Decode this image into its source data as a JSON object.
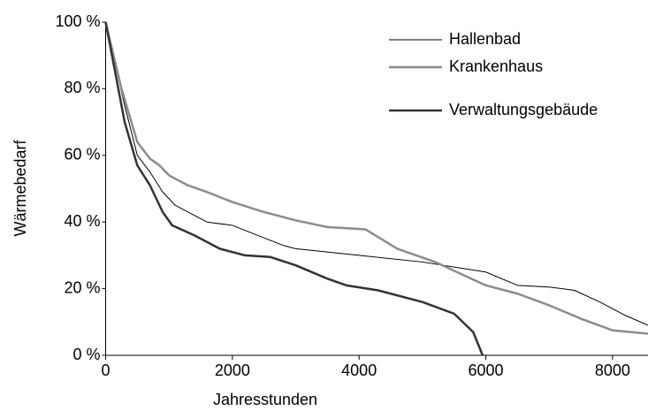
{
  "chart_data": {
    "type": "line",
    "xlabel": "Jahresstunden",
    "ylabel": "Wärmebedarf",
    "xlim": [
      0,
      8560
    ],
    "ylim": [
      0,
      100
    ],
    "xticks": [
      0,
      2000,
      4000,
      6000,
      8000
    ],
    "yticks": [
      {
        "value": 0,
        "label": "0 %"
      },
      {
        "value": 20,
        "label": "20 %"
      },
      {
        "value": 40,
        "label": "40 %"
      },
      {
        "value": 60,
        "label": "60 %"
      },
      {
        "value": 80,
        "label": "80 %"
      },
      {
        "value": 100,
        "label": "100 %"
      }
    ],
    "series": [
      {
        "name": "Hallenbad",
        "color": "#000000",
        "width": 1,
        "x": [
          0,
          300,
          500,
          700,
          900,
          1100,
          1300,
          1600,
          2000,
          2400,
          2800,
          3000,
          4000,
          5000,
          6000,
          6500,
          7000,
          7400,
          7800,
          8200,
          8560
        ],
        "values": [
          100,
          75,
          60,
          55,
          49,
          45,
          43,
          40,
          39,
          36,
          33,
          32,
          30,
          28,
          25,
          21,
          20.5,
          19.5,
          16,
          12,
          9
        ]
      },
      {
        "name": "Krankenhaus",
        "color": "#8c8c8c",
        "width": 2.5,
        "x": [
          0,
          250,
          500,
          700,
          850,
          1000,
          1300,
          1600,
          2000,
          2500,
          3000,
          3500,
          4100,
          4600,
          5200,
          6000,
          6500,
          7000,
          7500,
          8000,
          8560
        ],
        "values": [
          100,
          80,
          64,
          59,
          57,
          54,
          51,
          49,
          46,
          43,
          40.5,
          38.5,
          37.8,
          32,
          28,
          21,
          18.5,
          15,
          11,
          7.5,
          6.5
        ]
      },
      {
        "name": "Verwaltungsgebäude",
        "color": "#333333",
        "width": 2.5,
        "x": [
          0,
          300,
          500,
          700,
          900,
          1050,
          1400,
          1800,
          2200,
          2600,
          3000,
          3500,
          3800,
          4300,
          5000,
          5500,
          5800,
          5950
        ],
        "values": [
          100,
          70,
          57,
          51,
          43,
          39,
          36,
          32,
          30,
          29.5,
          27,
          23,
          21,
          19.5,
          16,
          12.5,
          7,
          0
        ]
      }
    ]
  }
}
